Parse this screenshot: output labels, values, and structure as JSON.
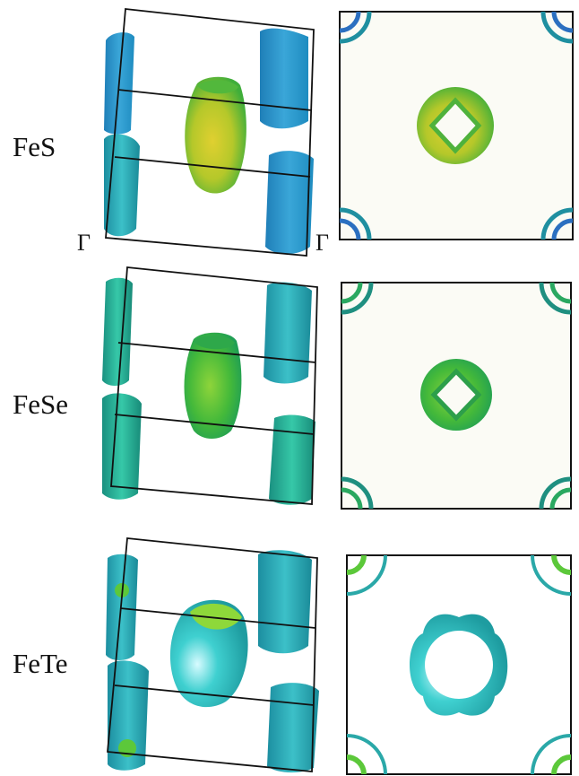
{
  "figure": {
    "materials": [
      {
        "name": "FeS",
        "central_surface_color": "yellow-green",
        "corner_surface_color": "blue"
      },
      {
        "name": "FeSe",
        "central_surface_color": "green",
        "corner_surface_color": "teal"
      },
      {
        "name": "FeTe",
        "central_surface_color": "cyan",
        "corner_surface_color": "cyan"
      }
    ],
    "gamma_labels": [
      "Γ",
      "Γ"
    ],
    "colors": {
      "yellow_green": "#b8cc2a",
      "green": "#4cbf3a",
      "teal": "#1f9e90",
      "cyan": "#2ec4c0",
      "blue": "#2b7fc6",
      "frame": "#111111",
      "background_2d": "#fbfbf5"
    }
  }
}
